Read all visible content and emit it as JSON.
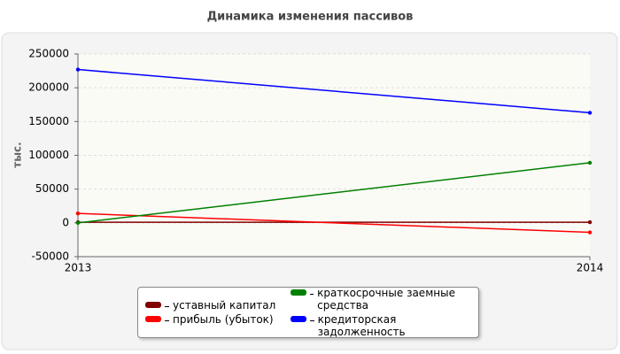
{
  "chart_data": {
    "type": "line",
    "title": "Динамика изменения пассивов",
    "y_label": "тыс.",
    "categories": [
      "2013",
      "2014"
    ],
    "series": [
      {
        "name": "уставный капитал",
        "color": "#800000",
        "values": [
          1000,
          1000
        ]
      },
      {
        "name": "прибыль (убыток)",
        "color": "#ff0000",
        "values": [
          14000,
          -14000
        ]
      },
      {
        "name": "краткосрочные заемные средства",
        "color": "#008000",
        "values": [
          0,
          89000
        ]
      },
      {
        "name": "кредиторская задолженность",
        "color": "#0000ff",
        "values": [
          227000,
          163000
        ]
      }
    ],
    "ylim": [
      -50000,
      250000
    ],
    "yticks": [
      -50000,
      0,
      50000,
      100000,
      150000,
      200000,
      250000
    ],
    "grid": true
  }
}
